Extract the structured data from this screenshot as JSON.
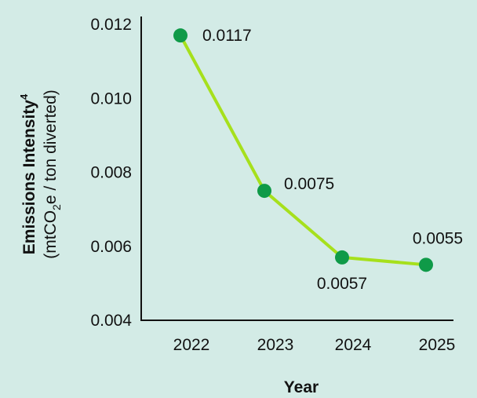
{
  "chart_data": {
    "type": "line",
    "categories": [
      "2022",
      "2023",
      "2024",
      "2025"
    ],
    "series": [
      {
        "values": [
          0.0117,
          0.0075,
          0.0057,
          0.0055
        ]
      }
    ],
    "data_labels": [
      "0.0117",
      "0.0075",
      "0.0057",
      "0.0055"
    ],
    "yticks": [
      "0.004",
      "0.006",
      "0.008",
      "0.010",
      "0.012"
    ],
    "ylim": [
      0.004,
      0.012
    ],
    "xlabel": "Year",
    "ylabel": {
      "main": "Emissions Intensity",
      "superscript": "4",
      "units_prefix": "(mtCO",
      "units_subscript": "2",
      "units_suffix": "e / ton diverted)"
    },
    "grid": false,
    "colors": {
      "background": "#d3ebe6",
      "line": "#a6e01c",
      "marker": "#0f9a48",
      "axis": "#111111"
    }
  }
}
